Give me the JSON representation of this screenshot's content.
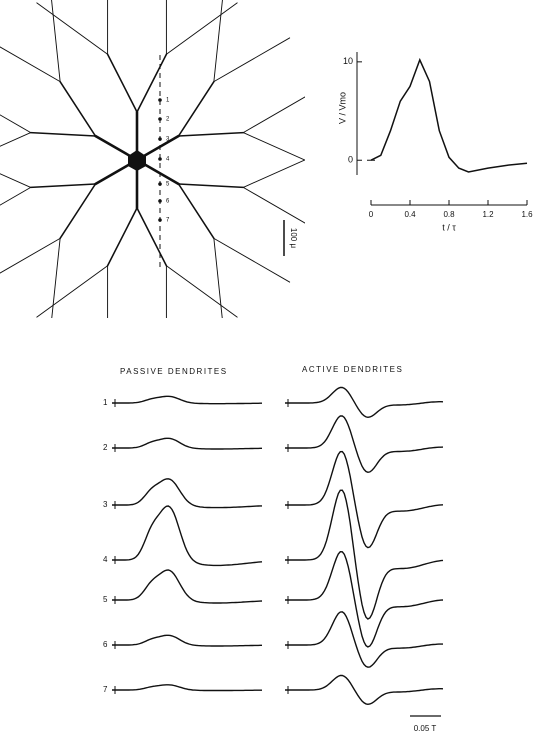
{
  "figure": {
    "diagram": {
      "electrode_labels": [
        "1",
        "2",
        "3",
        "4",
        "5",
        "6",
        "7"
      ],
      "scale_label": "100 μ"
    },
    "traces": {
      "passive_title": "PASSIVE DENDRITES",
      "active_title": "ACTIVE DENDRITES",
      "row_labels": [
        "1",
        "2",
        "3",
        "4",
        "5",
        "6",
        "7"
      ],
      "time_scale_label": "0.05 T"
    }
  },
  "chart_data": {
    "type": "line",
    "ylabel": "V / Vmo",
    "xlabel": "t / τ",
    "x": [
      0,
      0.1,
      0.2,
      0.3,
      0.4,
      0.5,
      0.6,
      0.7,
      0.8,
      0.9,
      1.0,
      1.2,
      1.4,
      1.6
    ],
    "values": [
      0,
      0.5,
      3,
      6,
      7.5,
      10.2,
      8,
      3,
      0.3,
      -0.8,
      -1.2,
      -0.8,
      -0.5,
      -0.3
    ],
    "color": "#111111",
    "xlim": [
      0,
      1.6
    ],
    "ylim": [
      -1.5,
      11
    ],
    "xticks": [
      0,
      0.4,
      0.8,
      1.2,
      1.6
    ],
    "yticks": [
      0,
      10
    ]
  }
}
